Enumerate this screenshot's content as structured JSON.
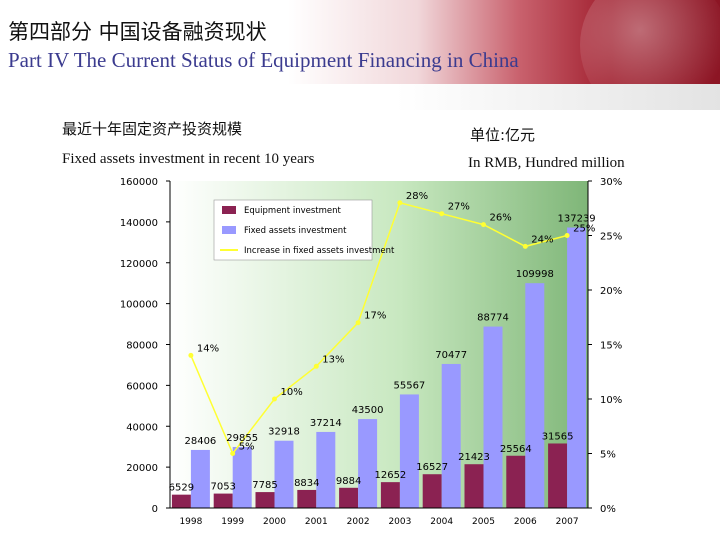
{
  "header": {
    "title_cn": "第四部分 中国设备融资现状",
    "title_en": "Part IV The Current Status of Equipment Financing in China"
  },
  "subtitle": {
    "left_cn": "最近十年固定资产投资规模",
    "left_en": "Fixed assets investment in recent 10 years",
    "right_cn": "单位:亿元",
    "right_en": "In RMB, Hundred million"
  },
  "colors": {
    "equipment_bar": "#8b2252",
    "fixed_bar": "#9999ff",
    "rate_line": "#ffff33"
  },
  "chart_data": {
    "type": "bar",
    "categories": [
      "1998",
      "1999",
      "2000",
      "2001",
      "2002",
      "2003",
      "2004",
      "2005",
      "2006",
      "2007"
    ],
    "ylim": [
      0,
      160000
    ],
    "y_ticks": [
      "0",
      "20000",
      "40000",
      "60000",
      "80000",
      "100000",
      "120000",
      "140000",
      "160000"
    ],
    "y2lim": [
      0,
      30
    ],
    "y2_ticks": [
      "0%",
      "5%",
      "10%",
      "15%",
      "20%",
      "25%",
      "30%"
    ],
    "series": [
      {
        "name": "Equipment investment",
        "kind": "bar",
        "values": [
          6529,
          7053,
          7785,
          8834,
          9884,
          12652,
          16527,
          21423,
          25564,
          31565
        ],
        "labels": [
          "6529",
          "7053",
          "7785",
          "8834",
          "9884",
          "12652",
          "16527",
          "21423",
          "25564",
          "31565"
        ]
      },
      {
        "name": "Fixed assets investment",
        "kind": "bar",
        "values": [
          28406,
          29855,
          32918,
          37214,
          43500,
          55567,
          70477,
          88774,
          109998,
          137239
        ],
        "labels": [
          "28406",
          "29855",
          "32918",
          "37214",
          "43500",
          "55567",
          "70477",
          "88774",
          "109998",
          "137239"
        ]
      },
      {
        "name": "Increase in fixed assets investment",
        "kind": "line",
        "axis": "right",
        "values": [
          14,
          5,
          10,
          13,
          17,
          28,
          27,
          26,
          24,
          25
        ],
        "labels": [
          "14%",
          "5%",
          "10%",
          "13%",
          "17%",
          "28%",
          "27%",
          "26%",
          "24%",
          "25%"
        ]
      }
    ],
    "legend": {
      "placement": "top-left",
      "entries": [
        "Equipment investment",
        "Fixed assets investment",
        "Increase in fixed assets investment"
      ]
    }
  }
}
